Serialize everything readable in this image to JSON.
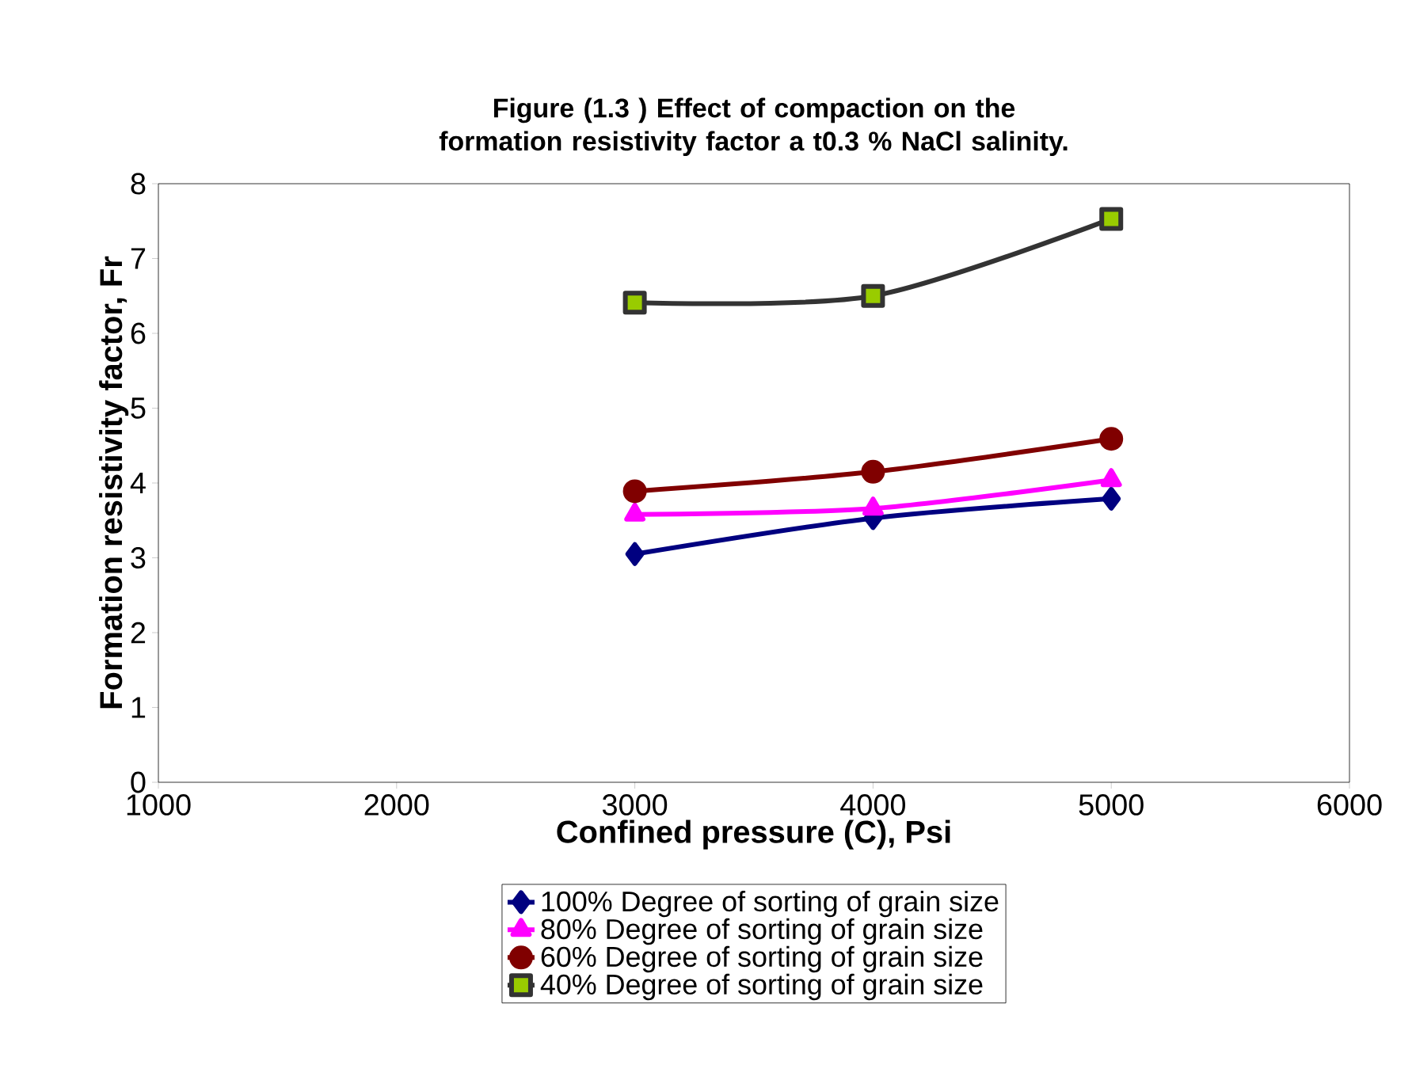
{
  "chart_data": {
    "type": "line",
    "title": "Figure (1.3 ) Effect of compaction on the formation resistivity factor a t0.3 % NaCl salinity.",
    "xlabel": "Confined pressure (C), Psi",
    "ylabel": "Formation resistivity factor, Fr",
    "x": [
      3000,
      4000,
      5000
    ],
    "xlim": [
      1000,
      6000
    ],
    "xticks": [
      1000,
      2000,
      3000,
      4000,
      5000,
      6000
    ],
    "ylim": [
      0,
      8
    ],
    "yticks": [
      0,
      1,
      2,
      3,
      4,
      5,
      6,
      7,
      8
    ],
    "grid": false,
    "legend": "bottom",
    "series": [
      {
        "name": "100% Degree of sorting of grain size",
        "color": "#000080",
        "marker": "diamond",
        "values": [
          3.05,
          3.53,
          3.79
        ]
      },
      {
        "name": "80% Degree of sorting of grain size",
        "color": "#ff00ff",
        "marker": "triangle",
        "values": [
          3.58,
          3.66,
          4.04
        ]
      },
      {
        "name": "60% Degree of sorting of grain size",
        "color": "#800000",
        "marker": "circle",
        "values": [
          3.89,
          4.15,
          4.59
        ]
      },
      {
        "name": "40% Degree of sorting of grain size",
        "color": "#333333",
        "marker": "square",
        "values": [
          6.41,
          6.5,
          7.53
        ]
      }
    ]
  }
}
